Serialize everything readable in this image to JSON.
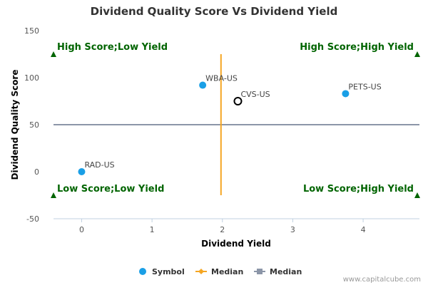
{
  "chart_data": {
    "type": "scatter",
    "title": "Dividend Quality Score Vs Dividend Yield",
    "xlabel": "Dividend Yield",
    "ylabel": "Dividend Quality Score",
    "xlim": [
      -0.4,
      4.8
    ],
    "ylim": [
      -50,
      150
    ],
    "xticks": [
      0,
      1,
      2,
      3,
      4
    ],
    "yticks": [
      -50,
      0,
      50,
      100,
      150
    ],
    "points": [
      {
        "label": "WBA-US",
        "x": 1.72,
        "y": 92,
        "color": "#1a9fe6",
        "style": "filled"
      },
      {
        "label": "CVS-US",
        "x": 2.22,
        "y": 75,
        "color": "#000000",
        "style": "hollow"
      },
      {
        "label": "PETS-US",
        "x": 3.75,
        "y": 83,
        "color": "#1a9fe6",
        "style": "filled"
      },
      {
        "label": "RAD-US",
        "x": 0.0,
        "y": 0,
        "color": "#1a9fe6",
        "style": "filled"
      }
    ],
    "median_x": {
      "name": "Median",
      "value": 1.98,
      "y_range": [
        -25,
        125
      ],
      "color": "#f5a623"
    },
    "median_y": {
      "name": "Median",
      "value": 50,
      "color": "#8c96a8"
    },
    "quadrants": {
      "top_left": "High Score;Low Yield",
      "top_right": "High Score;High Yield",
      "bottom_left": "Low Score;Low Yield",
      "bottom_right": "Low Score;High Yield"
    },
    "quadrant_marker_color": "#006400",
    "legend": [
      {
        "name": "Symbol",
        "symbol": "circle",
        "color": "#1a9fe6"
      },
      {
        "name": "Median",
        "symbol": "diamond-line",
        "color": "#f5a623"
      },
      {
        "name": "Median",
        "symbol": "square-line",
        "color": "#8c96a8"
      }
    ],
    "legend_position": "bottom",
    "grid": false
  },
  "credit": "www.capitalcube.com"
}
